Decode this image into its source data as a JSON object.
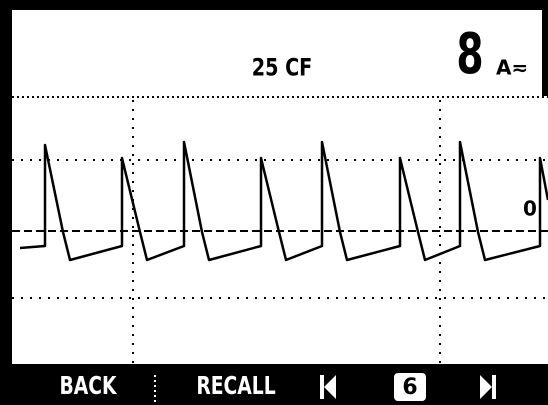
{
  "header": {
    "reading": "25 CF",
    "digit": "8",
    "unit": "A≂"
  },
  "trace": {
    "zero_label": "0"
  },
  "footer": {
    "back": "BACK",
    "recall": "RECALL",
    "page": "6"
  }
}
